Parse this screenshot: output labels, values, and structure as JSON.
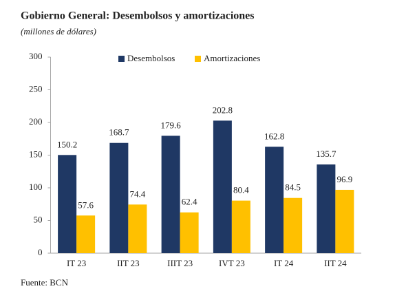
{
  "chart_data": {
    "type": "bar",
    "title": "Gobierno General: Desembolsos y amortizaciones",
    "subtitle": "(millones de dólares)",
    "categories": [
      "IT 23",
      "IIT 23",
      "IIIT 23",
      "IVT 23",
      "IT 24",
      "IIT 24"
    ],
    "series": [
      {
        "name": "Desembolsos",
        "color": "#1f3864",
        "values": [
          150.2,
          168.7,
          179.6,
          202.8,
          162.8,
          135.7
        ]
      },
      {
        "name": "Amortizaciones",
        "color": "#ffc000",
        "values": [
          57.6,
          74.4,
          62.4,
          80.4,
          84.5,
          96.9
        ]
      }
    ],
    "ylim": [
      0,
      300
    ],
    "yticks": [
      0,
      50,
      100,
      150,
      200,
      250,
      300
    ],
    "grid": false,
    "legend": "top",
    "source": "Fuente: BCN"
  }
}
